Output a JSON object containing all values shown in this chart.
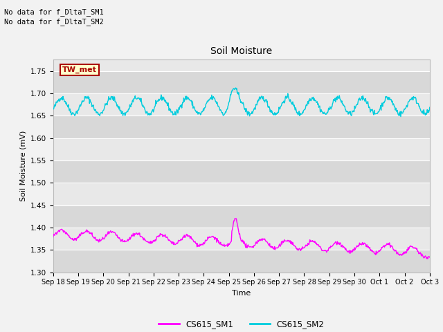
{
  "title": "Soil Moisture",
  "ylabel": "Soil Moisture (mV)",
  "xlabel": "Time",
  "ylim": [
    1.3,
    1.775
  ],
  "yticks": [
    1.3,
    1.35,
    1.4,
    1.45,
    1.5,
    1.55,
    1.6,
    1.65,
    1.7,
    1.75
  ],
  "xtick_labels": [
    "Sep 18",
    "Sep 19",
    "Sep 20",
    "Sep 21",
    "Sep 22",
    "Sep 23",
    "Sep 24",
    "Sep 25",
    "Sep 26",
    "Sep 27",
    "Sep 28",
    "Sep 29",
    "Sep 30",
    "Oct 1",
    "Oct 2",
    "Oct 3"
  ],
  "annotations": [
    "No data for f_DltaT_SM1",
    "No data for f_DltaT_SM2"
  ],
  "legend_box_text": "TW_met",
  "legend_box_facecolor": "#ffffcc",
  "legend_box_edgecolor": "#aa0000",
  "legend_box_textcolor": "#aa0000",
  "color_SM1": "#ff00ff",
  "color_SM2": "#00ccdd",
  "bg_color_light": "#e8e8e8",
  "bg_color_dark": "#d8d8d8",
  "grid_color": "#ffffff",
  "fig_bg": "#f2f2f2"
}
